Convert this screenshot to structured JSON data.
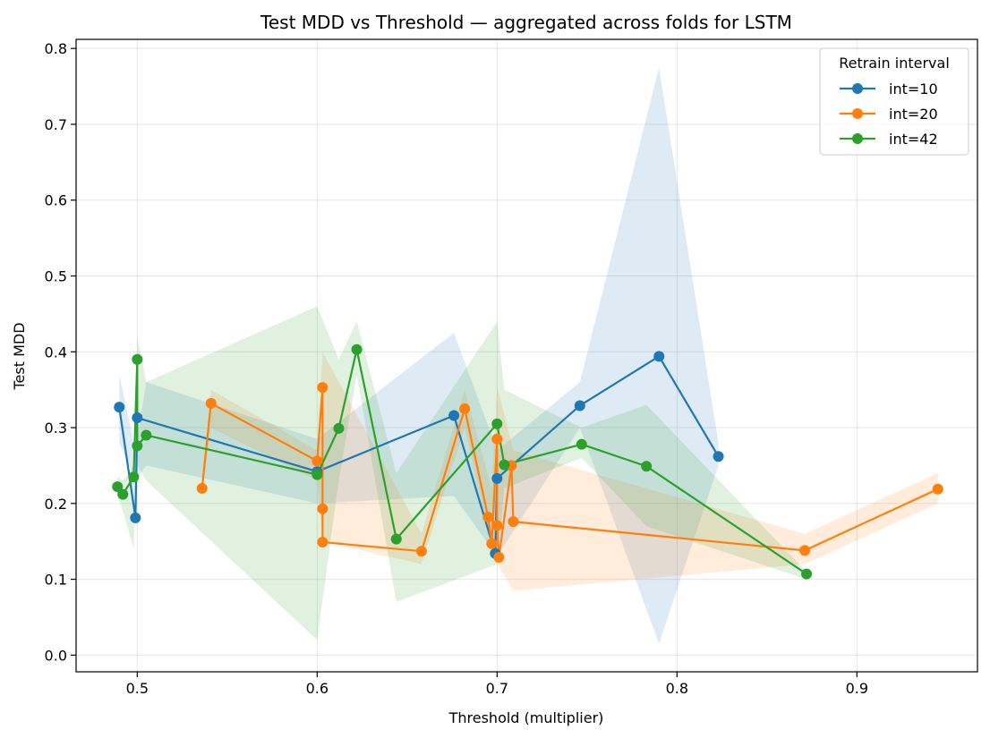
{
  "chart_data": {
    "type": "line",
    "title": "Test MDD vs Threshold — aggregated across folds for LSTM",
    "xlabel": "Threshold (multiplier)",
    "ylabel": "Test MDD",
    "xlim": [
      0.466,
      0.967
    ],
    "ylim": [
      -0.022,
      0.812
    ],
    "xticks": [
      0.5,
      0.6,
      0.7,
      0.8,
      0.9
    ],
    "xtick_labels": [
      "0.5",
      "0.6",
      "0.7",
      "0.8",
      "0.9"
    ],
    "yticks": [
      0.0,
      0.1,
      0.2,
      0.3,
      0.4,
      0.5,
      0.6,
      0.7,
      0.8
    ],
    "ytick_labels": [
      "0.0",
      "0.1",
      "0.2",
      "0.3",
      "0.4",
      "0.5",
      "0.6",
      "0.7",
      "0.8"
    ],
    "grid": true,
    "legend": {
      "title": "Retrain interval",
      "position": "top-right"
    },
    "series": [
      {
        "name": "int=10",
        "color": "#1f77b4",
        "band": [
          {
            "x": 0.49,
            "lo": 0.28,
            "hi": 0.37
          },
          {
            "x": 0.499,
            "lo": 0.23,
            "hi": 0.27
          },
          {
            "x": 0.505,
            "lo": 0.25,
            "hi": 0.36
          },
          {
            "x": 0.6,
            "lo": 0.2,
            "hi": 0.285
          },
          {
            "x": 0.676,
            "lo": 0.21,
            "hi": 0.425
          },
          {
            "x": 0.7,
            "lo": 0.13,
            "hi": 0.27
          },
          {
            "x": 0.746,
            "lo": 0.3,
            "hi": 0.36
          },
          {
            "x": 0.79,
            "lo": 0.015,
            "hi": 0.775
          },
          {
            "x": 0.823,
            "lo": 0.25,
            "hi": 0.28
          }
        ],
        "points": [
          {
            "x": 0.49,
            "y": 0.327
          },
          {
            "x": 0.499,
            "y": 0.181
          },
          {
            "x": 0.5,
            "y": 0.313
          },
          {
            "x": 0.6,
            "y": 0.242
          },
          {
            "x": 0.676,
            "y": 0.316
          },
          {
            "x": 0.699,
            "y": 0.134
          },
          {
            "x": 0.7,
            "y": 0.233
          },
          {
            "x": 0.746,
            "y": 0.329
          },
          {
            "x": 0.79,
            "y": 0.394
          },
          {
            "x": 0.823,
            "y": 0.262
          }
        ]
      },
      {
        "name": "int=20",
        "color": "#ff7f0e",
        "band": [
          {
            "x": 0.536,
            "lo": 0.21,
            "hi": 0.23
          },
          {
            "x": 0.541,
            "lo": 0.3,
            "hi": 0.35
          },
          {
            "x": 0.6,
            "lo": 0.23,
            "hi": 0.27
          },
          {
            "x": 0.603,
            "lo": 0.15,
            "hi": 0.4
          },
          {
            "x": 0.658,
            "lo": 0.12,
            "hi": 0.16
          },
          {
            "x": 0.682,
            "lo": 0.3,
            "hi": 0.35
          },
          {
            "x": 0.697,
            "lo": 0.14,
            "hi": 0.22
          },
          {
            "x": 0.7,
            "lo": 0.12,
            "hi": 0.355
          },
          {
            "x": 0.709,
            "lo": 0.085,
            "hi": 0.27
          },
          {
            "x": 0.871,
            "lo": 0.12,
            "hi": 0.16
          },
          {
            "x": 0.945,
            "lo": 0.2,
            "hi": 0.24
          }
        ],
        "points": [
          {
            "x": 0.536,
            "y": 0.22
          },
          {
            "x": 0.541,
            "y": 0.332
          },
          {
            "x": 0.6,
            "y": 0.256
          },
          {
            "x": 0.603,
            "y": 0.353
          },
          {
            "x": 0.603,
            "y": 0.193
          },
          {
            "x": 0.603,
            "y": 0.149
          },
          {
            "x": 0.658,
            "y": 0.137
          },
          {
            "x": 0.682,
            "y": 0.325
          },
          {
            "x": 0.695,
            "y": 0.182
          },
          {
            "x": 0.697,
            "y": 0.147
          },
          {
            "x": 0.7,
            "y": 0.285
          },
          {
            "x": 0.7,
            "y": 0.171
          },
          {
            "x": 0.701,
            "y": 0.129
          },
          {
            "x": 0.708,
            "y": 0.25
          },
          {
            "x": 0.709,
            "y": 0.176
          },
          {
            "x": 0.871,
            "y": 0.138
          },
          {
            "x": 0.945,
            "y": 0.219
          }
        ]
      },
      {
        "name": "int=42",
        "color": "#2ca02c",
        "band": [
          {
            "x": 0.489,
            "lo": 0.21,
            "hi": 0.235
          },
          {
            "x": 0.492,
            "lo": 0.19,
            "hi": 0.23
          },
          {
            "x": 0.498,
            "lo": 0.14,
            "hi": 0.25
          },
          {
            "x": 0.5,
            "lo": 0.25,
            "hi": 0.42
          },
          {
            "x": 0.505,
            "lo": 0.23,
            "hi": 0.36
          },
          {
            "x": 0.6,
            "lo": 0.02,
            "hi": 0.46
          },
          {
            "x": 0.612,
            "lo": 0.23,
            "hi": 0.39
          },
          {
            "x": 0.622,
            "lo": 0.37,
            "hi": 0.44
          },
          {
            "x": 0.644,
            "lo": 0.07,
            "hi": 0.24
          },
          {
            "x": 0.7,
            "lo": 0.12,
            "hi": 0.44
          },
          {
            "x": 0.704,
            "lo": 0.22,
            "hi": 0.35
          },
          {
            "x": 0.747,
            "lo": 0.26,
            "hi": 0.3
          },
          {
            "x": 0.783,
            "lo": 0.17,
            "hi": 0.33
          },
          {
            "x": 0.872,
            "lo": 0.1,
            "hi": 0.11
          }
        ],
        "points": [
          {
            "x": 0.489,
            "y": 0.222
          },
          {
            "x": 0.492,
            "y": 0.212
          },
          {
            "x": 0.498,
            "y": 0.235
          },
          {
            "x": 0.5,
            "y": 0.39
          },
          {
            "x": 0.5,
            "y": 0.276
          },
          {
            "x": 0.505,
            "y": 0.29
          },
          {
            "x": 0.6,
            "y": 0.238
          },
          {
            "x": 0.612,
            "y": 0.299
          },
          {
            "x": 0.622,
            "y": 0.403
          },
          {
            "x": 0.644,
            "y": 0.153
          },
          {
            "x": 0.7,
            "y": 0.305
          },
          {
            "x": 0.704,
            "y": 0.251
          },
          {
            "x": 0.747,
            "y": 0.278
          },
          {
            "x": 0.783,
            "y": 0.249
          },
          {
            "x": 0.872,
            "y": 0.107
          }
        ]
      }
    ]
  }
}
